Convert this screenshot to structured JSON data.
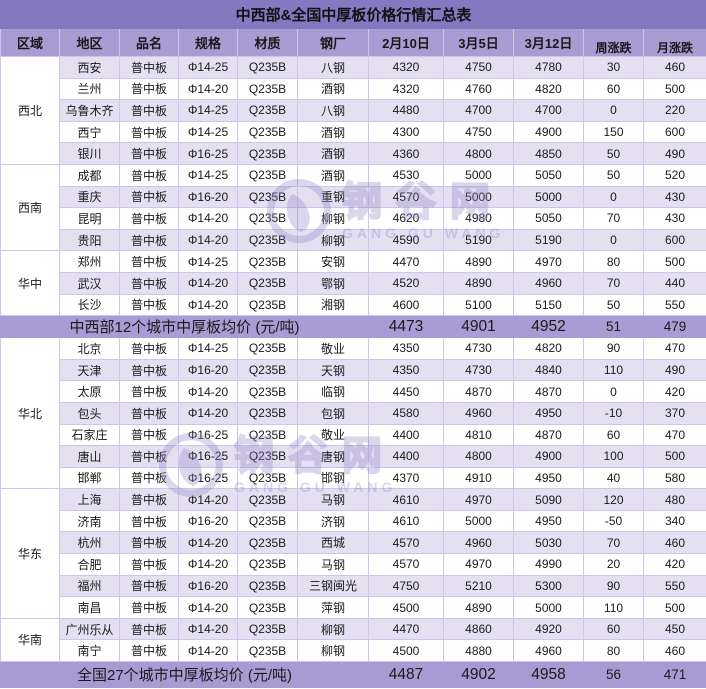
{
  "title": "中西部&全国中厚板价格行情汇总表",
  "columns": [
    "区域",
    "地区",
    "品名",
    "规格",
    "材质",
    "钢厂",
    "2月10日",
    "3月5日",
    "3月12日",
    "周涨跌",
    "月涨跌"
  ],
  "colors": {
    "title_bg": "#8478c0",
    "header_bg": "#a99cd3",
    "summary_bg": "#a99bd3",
    "alt_row_bg": "#e4e0f2",
    "up_red": "#fe2626",
    "down_green": "#3ab878"
  },
  "watermark": {
    "cn": "钢谷网",
    "en": "GANG GU WANG"
  },
  "sections": [
    {
      "type": "region",
      "name": "西北",
      "rows": [
        [
          "西安",
          "普中板",
          "Φ14-25",
          "Q235B",
          "八钢",
          "4320",
          "4750",
          "4780",
          "30",
          "460"
        ],
        [
          "兰州",
          "普中板",
          "Φ14-20",
          "Q235B",
          "酒钢",
          "4320",
          "4760",
          "4820",
          "60",
          "500"
        ],
        [
          "乌鲁木齐",
          "普中板",
          "Φ14-25",
          "Q235B",
          "八钢",
          "4480",
          "4700",
          "4700",
          "0",
          "220"
        ],
        [
          "西宁",
          "普中板",
          "Φ14-25",
          "Q235B",
          "酒钢",
          "4300",
          "4750",
          "4900",
          "150",
          "600"
        ],
        [
          "银川",
          "普中板",
          "Φ16-25",
          "Q235B",
          "酒钢",
          "4360",
          "4800",
          "4850",
          "50",
          "490"
        ]
      ]
    },
    {
      "type": "region",
      "name": "西南",
      "rows": [
        [
          "成都",
          "普中板",
          "Φ14-25",
          "Q235B",
          "酒钢",
          "4530",
          "5000",
          "5050",
          "50",
          "520"
        ],
        [
          "重庆",
          "普中板",
          "Φ16-20",
          "Q235B",
          "重钢",
          "4570",
          "5000",
          "5000",
          "0",
          "430"
        ],
        [
          "昆明",
          "普中板",
          "Φ14-20",
          "Q235B",
          "柳钢",
          "4620",
          "4980",
          "5050",
          "70",
          "430"
        ],
        [
          "贵阳",
          "普中板",
          "Φ14-20",
          "Q235B",
          "柳钢",
          "4590",
          "5190",
          "5190",
          "0",
          "600"
        ]
      ]
    },
    {
      "type": "region",
      "name": "华中",
      "rows": [
        [
          "郑州",
          "普中板",
          "Φ14-25",
          "Q235B",
          "安钢",
          "4470",
          "4890",
          "4970",
          "80",
          "500"
        ],
        [
          "武汉",
          "普中板",
          "Φ14-20",
          "Q235B",
          "鄂钢",
          "4520",
          "4890",
          "4960",
          "70",
          "440"
        ],
        [
          "长沙",
          "普中板",
          "Φ14-20",
          "Q235B",
          "湘钢",
          "4600",
          "5100",
          "5150",
          "50",
          "550"
        ]
      ]
    },
    {
      "type": "summary",
      "label": "中西部12个城市中厚板均价 (元/吨)",
      "prices": [
        "4473",
        "4901",
        "4952"
      ],
      "week": "51",
      "month": "479"
    },
    {
      "type": "region",
      "name": "华北",
      "rows": [
        [
          "北京",
          "普中板",
          "Φ14-25",
          "Q235B",
          "敬业",
          "4350",
          "4730",
          "4820",
          "90",
          "470"
        ],
        [
          "天津",
          "普中板",
          "Φ16-20",
          "Q235B",
          "天钢",
          "4350",
          "4730",
          "4840",
          "110",
          "490"
        ],
        [
          "太原",
          "普中板",
          "Φ14-20",
          "Q235B",
          "临钢",
          "4450",
          "4870",
          "4870",
          "0",
          "420"
        ],
        [
          "包头",
          "普中板",
          "Φ14-20",
          "Q235B",
          "包钢",
          "4580",
          "4960",
          "4950",
          "-10",
          "370"
        ],
        [
          "石家庄",
          "普中板",
          "Φ16-25",
          "Q235B",
          "敬业",
          "4400",
          "4810",
          "4870",
          "60",
          "470"
        ],
        [
          "唐山",
          "普中板",
          "Φ16-25",
          "Q235B",
          "唐钢",
          "4400",
          "4800",
          "4900",
          "100",
          "500"
        ],
        [
          "邯郸",
          "普中板",
          "Φ16-25",
          "Q235B",
          "邯钢",
          "4370",
          "4910",
          "4950",
          "40",
          "580"
        ]
      ]
    },
    {
      "type": "region",
      "name": "华东",
      "rows": [
        [
          "上海",
          "普中板",
          "Φ14-20",
          "Q235B",
          "马钢",
          "4610",
          "4970",
          "5090",
          "120",
          "480"
        ],
        [
          "济南",
          "普中板",
          "Φ16-20",
          "Q235B",
          "济钢",
          "4610",
          "5000",
          "4950",
          "-50",
          "340"
        ],
        [
          "杭州",
          "普中板",
          "Φ14-20",
          "Q235B",
          "西城",
          "4570",
          "4960",
          "5030",
          "70",
          "460"
        ],
        [
          "合肥",
          "普中板",
          "Φ14-20",
          "Q235B",
          "马钢",
          "4570",
          "4970",
          "4990",
          "20",
          "420"
        ],
        [
          "福州",
          "普中板",
          "Φ16-20",
          "Q235B",
          "三钢闽光",
          "4750",
          "5210",
          "5300",
          "90",
          "550"
        ],
        [
          "南昌",
          "普中板",
          "Φ14-20",
          "Q235B",
          "萍钢",
          "4500",
          "4890",
          "5000",
          "110",
          "500"
        ]
      ]
    },
    {
      "type": "region",
      "name": "华南",
      "rows": [
        [
          "广州乐从",
          "普中板",
          "Φ14-20",
          "Q235B",
          "柳钢",
          "4470",
          "4860",
          "4920",
          "60",
          "450"
        ],
        [
          "南宁",
          "普中板",
          "Φ14-20",
          "Q235B",
          "柳钢",
          "4500",
          "4880",
          "4960",
          "80",
          "460"
        ]
      ]
    },
    {
      "type": "summary",
      "label": "全国27个城市中厚板均价 (元/吨)",
      "prices": [
        "4487",
        "4902",
        "4958"
      ],
      "week": "56",
      "month": "471"
    }
  ]
}
